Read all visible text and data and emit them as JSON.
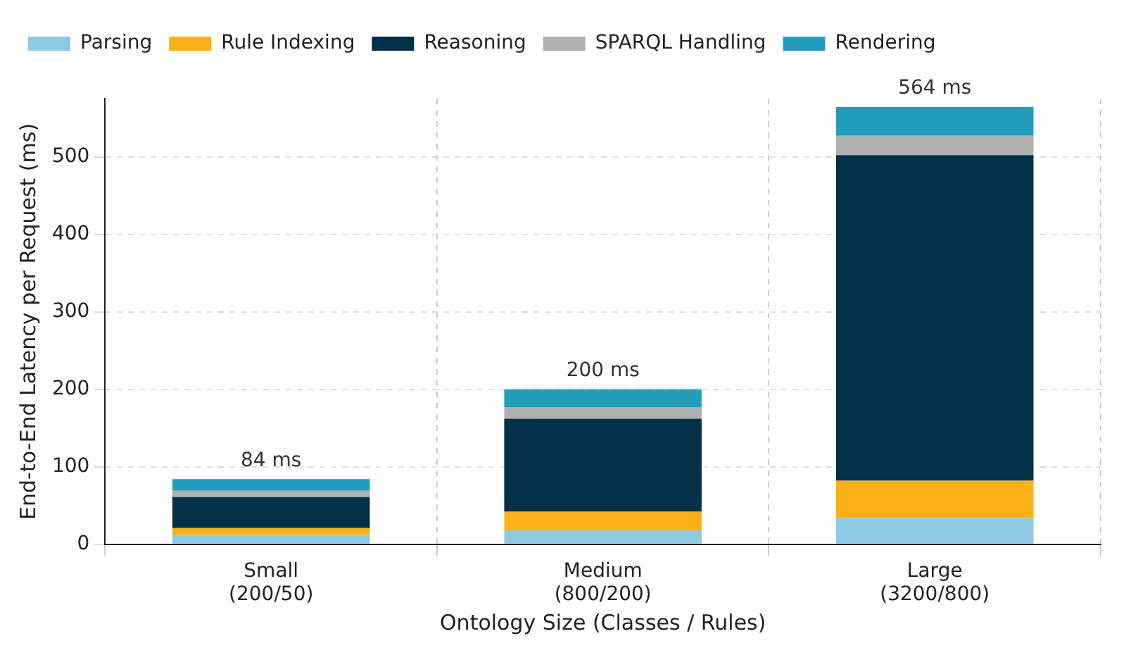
{
  "chart_data": {
    "type": "bar",
    "stacked": true,
    "xlabel": "Ontology Size (Classes / Rules)",
    "ylabel": "End-to-End Latency per Request (ms)",
    "categories": [
      "Small\n(200/50)",
      "Medium\n(800/200)",
      "Large\n(3200/800)"
    ],
    "series": [
      {
        "name": "Parsing",
        "color": "#8ecae6",
        "values": [
          12,
          18,
          34
        ]
      },
      {
        "name": "Rule Indexing",
        "color": "#fbb117",
        "values": [
          9,
          24,
          48
        ]
      },
      {
        "name": "Reasoning",
        "color": "#023047",
        "values": [
          40,
          120,
          420
        ]
      },
      {
        "name": "SPARQL Handling",
        "color": "#b0b0b0",
        "values": [
          8,
          15,
          25
        ]
      },
      {
        "name": "Rendering",
        "color": "#219ebc",
        "values": [
          15,
          23,
          37
        ]
      }
    ],
    "totals": [
      "84 ms",
      "200 ms",
      "564 ms"
    ],
    "ylim": [
      0,
      575
    ],
    "yticks": [
      0,
      100,
      200,
      300,
      400,
      500
    ],
    "grid": true,
    "legend": "top"
  }
}
